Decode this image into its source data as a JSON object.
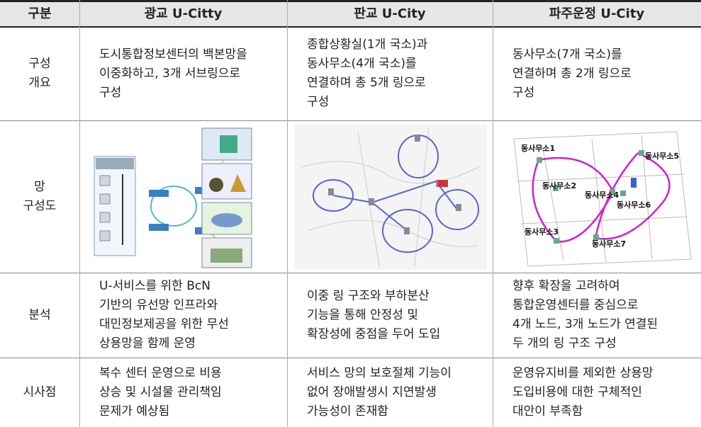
{
  "table": {
    "header": [
      "구분",
      "광교 U-Citty",
      "판교 U-City",
      "파주운정 U-City"
    ],
    "rows": [
      {
        "label": [
          "구성",
          "개요"
        ],
        "cells": [
          [
            "도시통합정보센터의 백본망을",
            "이중화하고, 3개 서브링으로",
            "구성"
          ],
          [
            "종합상황실(1개 국소)과",
            "동사무소(4개 국소)를",
            "연결하며 총 5개 링으로",
            "구성"
          ],
          [
            "동사무소(7개 국소)를",
            "연결하며 총 2개 링으로",
            "구성"
          ]
        ]
      },
      {
        "label": [
          "망",
          "구성도"
        ],
        "cells": [
          [],
          [],
          []
        ]
      },
      {
        "label": [
          "분석"
        ],
        "cells": [
          [
            "U-서비스를 위한 BcN",
            "기반의 유선망 인프라와",
            "대민정보제공을 위한 무선",
            "상용망을 함께 운영"
          ],
          [
            "이중 링 구조와 부하분산",
            "기능을 통해 안정성 및",
            "확장성에 중점을 두어 도입"
          ],
          [
            "향후 확장을 고려하여",
            "통합운영센터를 중심으로",
            "4개 노드, 3개 노드가 연결된",
            "두 개의 링 구조 구성"
          ]
        ]
      },
      {
        "label": [
          "시사점"
        ],
        "cells": [
          [
            "복수 센터 운영으로 비용",
            "상승 및 시설물 관리책임",
            "문제가 예상됨"
          ],
          [
            "서비스 망의 보호절체 기능이",
            "없어 장애발생시 지연발생",
            "가능성이 존재함"
          ],
          [
            "운영유지비를 제외한 상용망",
            "도입비용에 대한 구체적인",
            "대안이 부족함"
          ]
        ]
      }
    ]
  },
  "paju_map_labels": [
    "동사무소1",
    "동사무소5",
    "동사무소2",
    "동사무소4",
    "동사무소6",
    "동사무소3",
    "동사무소7"
  ]
}
